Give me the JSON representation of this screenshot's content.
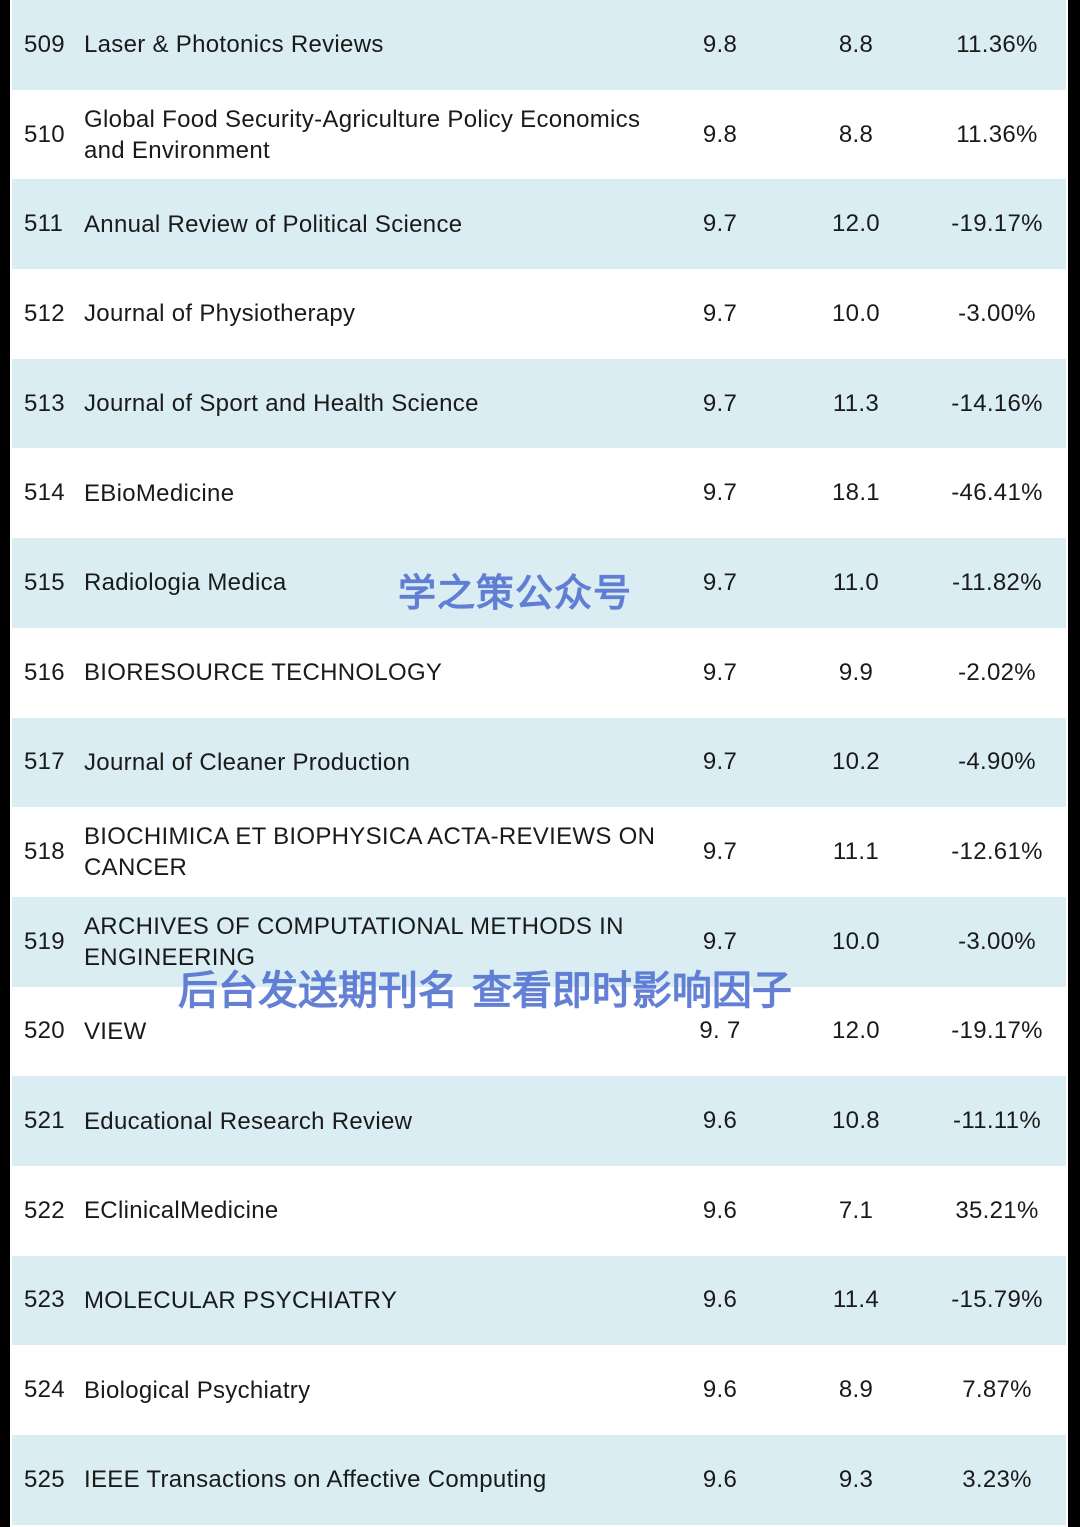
{
  "rows": [
    {
      "rank": "509",
      "name": "Laser & Photonics Reviews",
      "current": "9.8",
      "previous": "8.8",
      "change": "11.36%"
    },
    {
      "rank": "510",
      "name": "Global Food Security-Agriculture Policy Economics and Environment",
      "current": "9.8",
      "previous": "8.8",
      "change": "11.36%"
    },
    {
      "rank": "511",
      "name": "Annual Review of Political Science",
      "current": "9.7",
      "previous": "12.0",
      "change": "-19.17%"
    },
    {
      "rank": "512",
      "name": "Journal of Physiotherapy",
      "current": "9.7",
      "previous": "10.0",
      "change": "-3.00%"
    },
    {
      "rank": "513",
      "name": "Journal of Sport and Health Science",
      "current": "9.7",
      "previous": "11.3",
      "change": "-14.16%"
    },
    {
      "rank": "514",
      "name": "EBioMedicine",
      "current": "9.7",
      "previous": "18.1",
      "change": "-46.41%"
    },
    {
      "rank": "515",
      "name": "Radiologia Medica",
      "current": "9.7",
      "previous": "11.0",
      "change": "-11.82%"
    },
    {
      "rank": "516",
      "name": "BIORESOURCE TECHNOLOGY",
      "current": "9.7",
      "previous": "9.9",
      "change": "-2.02%"
    },
    {
      "rank": "517",
      "name": "Journal of Cleaner Production",
      "current": "9.7",
      "previous": "10.2",
      "change": "-4.90%"
    },
    {
      "rank": "518",
      "name": "BIOCHIMICA ET BIOPHYSICA ACTA-REVIEWS ON CANCER",
      "current": "9.7",
      "previous": "11.1",
      "change": "-12.61%"
    },
    {
      "rank": "519",
      "name": "ARCHIVES OF COMPUTATIONAL METHODS IN ENGINEERING",
      "current": "9.7",
      "previous": "10.0",
      "change": "-3.00%"
    },
    {
      "rank": "520",
      "name": "VIEW",
      "current": "9. 7",
      "previous": "12.0",
      "change": "-19.17%"
    },
    {
      "rank": "521",
      "name": "Educational Research Review",
      "current": "9.6",
      "previous": "10.8",
      "change": "-11.11%"
    },
    {
      "rank": "522",
      "name": "EClinicalMedicine",
      "current": "9.6",
      "previous": "7.1",
      "change": "35.21%"
    },
    {
      "rank": "523",
      "name": "MOLECULAR PSYCHIATRY",
      "current": "9.6",
      "previous": "11.4",
      "change": "-15.79%"
    },
    {
      "rank": "524",
      "name": "Biological Psychiatry",
      "current": "9.6",
      "previous": "8.9",
      "change": "7.87%"
    },
    {
      "rank": "525",
      "name": "IEEE Transactions on Affective Computing",
      "current": "9.6",
      "previous": "9.3",
      "change": "3.23%"
    }
  ],
  "watermarks": {
    "account": "学之策公众号",
    "instruction": "后台发送期刊名 查看即时影响因子"
  },
  "colors": {
    "shaded_row": "#daedf2",
    "watermark": "#4f6fd0"
  }
}
